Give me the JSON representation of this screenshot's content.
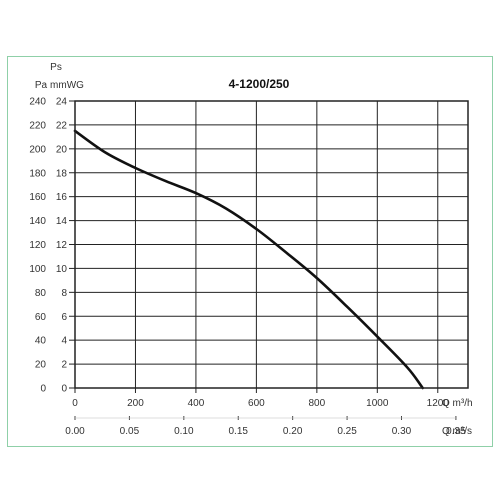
{
  "chart_data": {
    "type": "line",
    "title": "4-1200/250",
    "y_label_top": "Ps",
    "y_unit_pa": "Pa",
    "y_unit_mmwg": "mmWG",
    "x_unit_m3h": "Q m³/h",
    "x_unit_m3s": "Q m³/s",
    "pa_ticks": [
      "240",
      "220",
      "200",
      "180",
      "160",
      "140",
      "120",
      "100",
      "80",
      "60",
      "40",
      "20",
      "0"
    ],
    "mmwg_ticks": [
      "24",
      "22",
      "20",
      "18",
      "16",
      "14",
      "12",
      "10",
      "8",
      "6",
      "4",
      "2",
      "0"
    ],
    "m3h_ticks": [
      "0",
      "200",
      "400",
      "600",
      "800",
      "1000",
      "1200"
    ],
    "m3s_ticks": [
      "0.00",
      "0.05",
      "0.10",
      "0.15",
      "0.20",
      "0.25",
      "0.30",
      "0.35"
    ],
    "xlim_m3h": [
      0,
      1300
    ],
    "ylim_pa": [
      0,
      240
    ],
    "grid": true,
    "series": [
      {
        "x": [
          0,
          100,
          200,
          300,
          400,
          500,
          600,
          700,
          800,
          900,
          1000,
          1100,
          1150
        ],
        "y": [
          215,
          197,
          184,
          173,
          163,
          150,
          133,
          113,
          92,
          68,
          43,
          17,
          0
        ]
      }
    ]
  }
}
